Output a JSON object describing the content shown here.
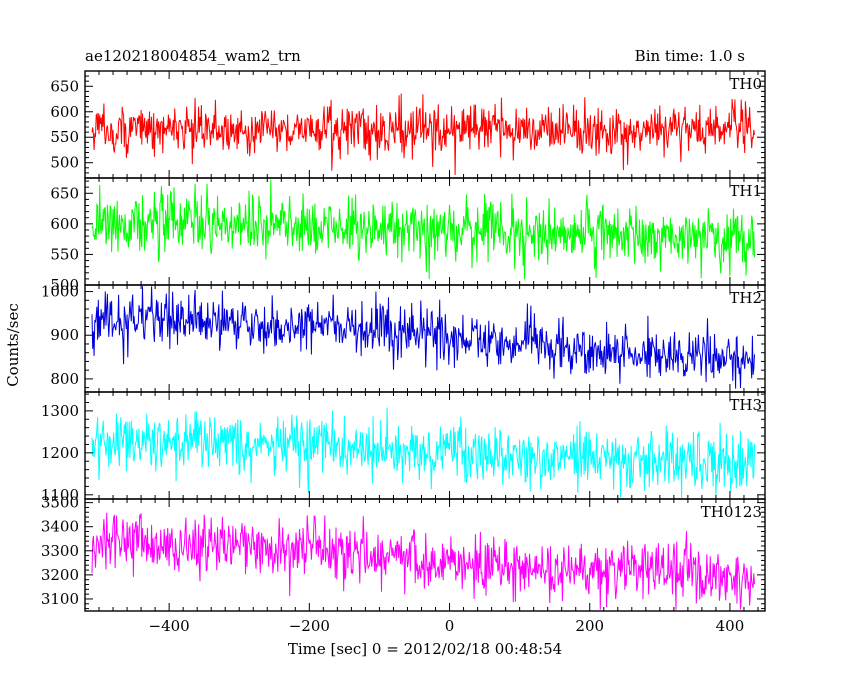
{
  "header": {
    "title": "ae120218004854_wam2_trn",
    "bin_time": "Bin time: 1.0 s"
  },
  "chart_data": {
    "type": "line",
    "title": "ae120218004854_wam2_trn",
    "xlabel": "Time [sec] 0 = 2012/02/18 00:48:54",
    "ylabel": "Counts/sec",
    "xlim": [
      -520,
      450
    ],
    "x_ticks": [
      -400,
      -200,
      0,
      200,
      400
    ],
    "x_tick_labels": [
      "−400",
      "−200",
      "0",
      "200",
      "400"
    ],
    "x_range_data": [
      -510,
      435
    ],
    "bin_time_s": 1.0,
    "panels": [
      {
        "name": "TH0",
        "color": "#ff0000",
        "ylim": [
          470,
          680
        ],
        "y_ticks": [
          500,
          550,
          600,
          650
        ],
        "trend": [
          [
            -510,
            565
          ],
          [
            435,
            565
          ]
        ],
        "noise": 24,
        "clip": [
          475,
          676
        ]
      },
      {
        "name": "TH1",
        "color": "#00ff00",
        "ylim": [
          500,
          675
        ],
        "y_ticks": [
          500,
          550,
          600,
          650
        ],
        "trend": [
          [
            -510,
            605
          ],
          [
            0,
            590
          ],
          [
            435,
            575
          ]
        ],
        "noise": 25,
        "clip": [
          504,
          672
        ]
      },
      {
        "name": "TH2",
        "color": "#0000dd",
        "ylim": [
          770,
          1015
        ],
        "y_ticks": [
          800,
          900,
          1000
        ],
        "trend": [
          [
            -510,
            940
          ],
          [
            -100,
            915
          ],
          [
            100,
            880
          ],
          [
            435,
            845
          ]
        ],
        "noise": 30,
        "clip": [
          775,
          1012
        ]
      },
      {
        "name": "TH3",
        "color": "#00ffff",
        "ylim": [
          1090,
          1345
        ],
        "y_ticks": [
          1100,
          1200,
          1300
        ],
        "trend": [
          [
            -510,
            1235
          ],
          [
            0,
            1200
          ],
          [
            435,
            1175
          ]
        ],
        "noise": 35,
        "clip": [
          1093,
          1342
        ]
      },
      {
        "name": "TH0123",
        "color": "#ff00ff",
        "ylim": [
          3050,
          3515
        ],
        "y_ticks": [
          3100,
          3200,
          3300,
          3400,
          3500
        ],
        "trend": [
          [
            -510,
            3340
          ],
          [
            -150,
            3300
          ],
          [
            150,
            3220
          ],
          [
            435,
            3180
          ]
        ],
        "noise": 62,
        "clip": [
          3055,
          3512
        ]
      }
    ]
  }
}
